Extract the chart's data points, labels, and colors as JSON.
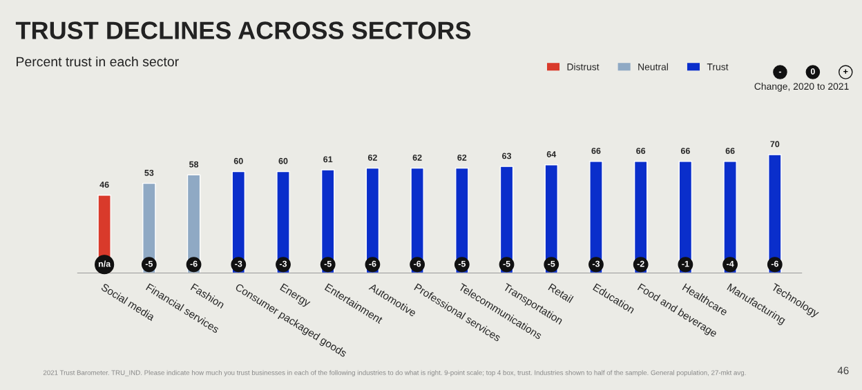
{
  "chart_data": {
    "type": "bar",
    "title": "TRUST DECLINES ACROSS SECTORS",
    "subtitle": "Percent trust in each sector",
    "categories": [
      "Social media",
      "Financial services",
      "Fashion",
      "Consumer packaged goods",
      "Energy",
      "Entertainment",
      "Automotive",
      "Professional services",
      "Telecommunications",
      "Transportation",
      "Retail",
      "Education",
      "Food and beverage",
      "Healthcare",
      "Manufacturing",
      "Technology"
    ],
    "series": [
      {
        "name": "Distrust",
        "color": "#d93a2b",
        "values": [
          46,
          null,
          null,
          null,
          null,
          null,
          null,
          null,
          null,
          null,
          null,
          null,
          null,
          null,
          null,
          null
        ]
      },
      {
        "name": "Neutral",
        "color": "#8fa9c4",
        "values": [
          null,
          53,
          58,
          null,
          null,
          null,
          null,
          null,
          null,
          null,
          null,
          null,
          null,
          null,
          null,
          null
        ]
      },
      {
        "name": "Trust",
        "color": "#0a2ecb",
        "values": [
          null,
          null,
          null,
          60,
          60,
          61,
          62,
          62,
          62,
          63,
          64,
          66,
          66,
          66,
          66,
          70
        ]
      }
    ],
    "data_labels": true,
    "tick_labels": "x",
    "legend": "top right",
    "grid": false,
    "annotations": [
      "2021 Trust Barometer. TRU_IND. Please indicate how much you trust businesses in each of the following industries to do what is right. 9-point scale; top 4 box, trust. Industries shown to half of the sample. General population, 27-mkt avg.",
      "46",
      "Change, 2020 to 2021",
      "-",
      "0",
      "+",
      {
        "text": "n/a",
        "x": "Social media",
        "y": 5
      },
      {
        "text": "-5",
        "x": "Financial services",
        "y": 5
      },
      {
        "text": "-6",
        "x": "Fashion",
        "y": 5
      },
      {
        "text": "-3",
        "x": "Consumer packaged goods",
        "y": 5
      },
      {
        "text": "-3",
        "x": "Energy",
        "y": 5
      },
      {
        "text": "-5",
        "x": "Entertainment",
        "y": 5
      },
      {
        "text": "-6",
        "x": "Automotive",
        "y": 5
      },
      {
        "text": "-6",
        "x": "Professional services",
        "y": 5
      },
      {
        "text": "-5",
        "x": "Telecommunications",
        "y": 5
      },
      {
        "text": "-5",
        "x": "Transportation",
        "y": 5
      },
      {
        "text": "-5",
        "x": "Retail",
        "y": 5
      },
      {
        "text": "-3",
        "x": "Education",
        "y": 5
      },
      {
        "text": "-2",
        "x": "Food and beverage",
        "y": 5
      },
      {
        "text": "-1",
        "x": "Healthcare",
        "y": 5
      },
      {
        "text": "-4",
        "x": "Manufacturing",
        "y": 5
      },
      {
        "text": "-6",
        "x": "Technology",
        "y": 5
      }
    ]
  }
}
